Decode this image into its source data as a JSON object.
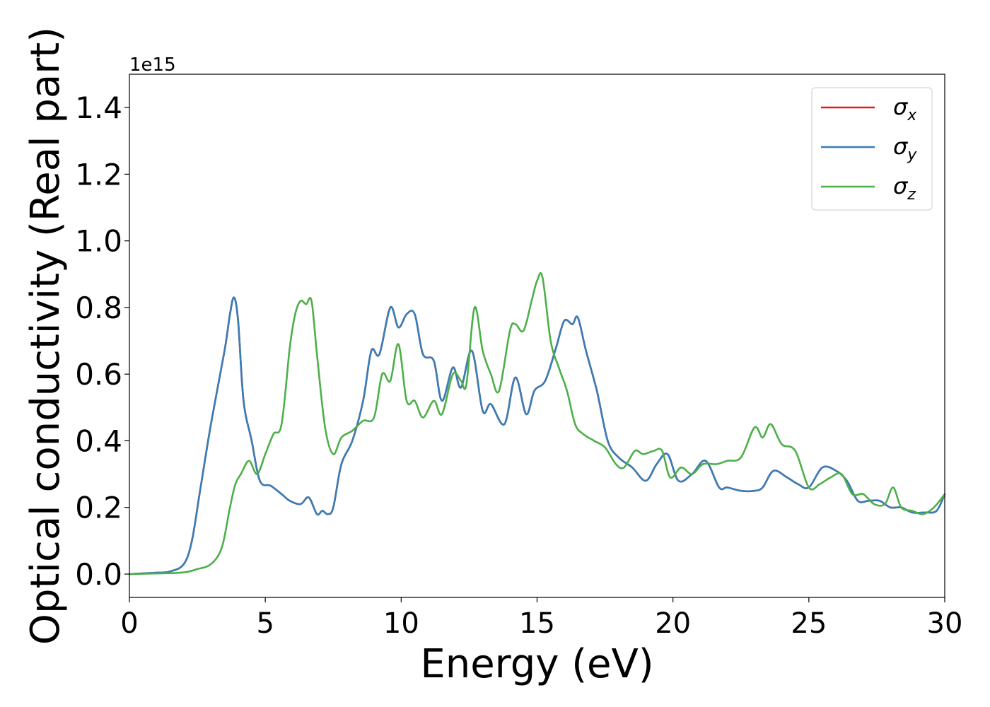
{
  "chart_data": {
    "type": "line",
    "xlabel": "Energy (eV)",
    "ylabel": "Optical conductivity (Real part)",
    "y_offset_text": "1e15",
    "xlim": [
      0,
      30
    ],
    "ylim": [
      -0.07,
      1.5
    ],
    "grid": false,
    "legend_position": "top-right",
    "x_ticks": [
      0,
      5,
      10,
      15,
      20,
      25,
      30
    ],
    "x_tick_labels": [
      "0",
      "5",
      "10",
      "15",
      "20",
      "25",
      "30"
    ],
    "y_ticks": [
      0.0,
      0.2,
      0.4,
      0.6,
      0.8,
      1.0,
      1.2,
      1.4
    ],
    "y_tick_labels": [
      "0.0",
      "0.2",
      "0.4",
      "0.6",
      "0.8",
      "1.0",
      "1.2",
      "1.4"
    ],
    "series": [
      {
        "name": "σx",
        "symbol": "σ",
        "subscript": "x",
        "color": "#e41a1c",
        "x": [
          0,
          1,
          1.5,
          2,
          2.3,
          2.6,
          3.0,
          3.5,
          3.7,
          3.85,
          4.0,
          4.2,
          4.5,
          4.8,
          5.2,
          5.6,
          5.9,
          6.3,
          6.6,
          6.9,
          7.1,
          7.3,
          7.5,
          7.8,
          8.2,
          8.6,
          8.9,
          9.2,
          9.6,
          9.9,
          10.2,
          10.5,
          10.8,
          11.2,
          11.5,
          11.9,
          12.2,
          12.6,
          13.0,
          13.3,
          13.8,
          14.2,
          14.6,
          14.9,
          15.3,
          15.7,
          16.0,
          16.3,
          16.5,
          16.8,
          17.2,
          17.6,
          18.0,
          18.5,
          19.0,
          19.4,
          19.8,
          20.2,
          20.7,
          21.2,
          21.7,
          22.0,
          22.5,
          23.0,
          23.3,
          23.7,
          24.2,
          24.6,
          25.0,
          25.5,
          26.0,
          26.4,
          26.8,
          27.2,
          27.6,
          28.0,
          28.4,
          28.8,
          29.3,
          29.7,
          30.0
        ],
        "y": [
          0,
          0.004,
          0.008,
          0.03,
          0.1,
          0.25,
          0.45,
          0.67,
          0.78,
          0.83,
          0.76,
          0.52,
          0.4,
          0.28,
          0.265,
          0.24,
          0.22,
          0.21,
          0.23,
          0.18,
          0.19,
          0.18,
          0.2,
          0.33,
          0.4,
          0.52,
          0.67,
          0.66,
          0.8,
          0.74,
          0.78,
          0.78,
          0.66,
          0.64,
          0.52,
          0.62,
          0.56,
          0.67,
          0.49,
          0.51,
          0.45,
          0.59,
          0.48,
          0.55,
          0.58,
          0.68,
          0.76,
          0.75,
          0.77,
          0.67,
          0.55,
          0.4,
          0.35,
          0.32,
          0.28,
          0.33,
          0.36,
          0.28,
          0.3,
          0.34,
          0.26,
          0.26,
          0.25,
          0.25,
          0.26,
          0.31,
          0.29,
          0.27,
          0.26,
          0.32,
          0.31,
          0.28,
          0.22,
          0.22,
          0.22,
          0.2,
          0.2,
          0.185,
          0.185,
          0.19,
          0.24
        ]
      },
      {
        "name": "σy",
        "symbol": "σ",
        "subscript": "y",
        "color": "#377eb8",
        "x": [
          0,
          1,
          1.5,
          2,
          2.3,
          2.6,
          3.0,
          3.5,
          3.7,
          3.85,
          4.0,
          4.2,
          4.5,
          4.8,
          5.2,
          5.6,
          5.9,
          6.3,
          6.6,
          6.9,
          7.1,
          7.3,
          7.5,
          7.8,
          8.2,
          8.6,
          8.9,
          9.2,
          9.6,
          9.9,
          10.2,
          10.5,
          10.8,
          11.2,
          11.5,
          11.9,
          12.2,
          12.6,
          13.0,
          13.3,
          13.8,
          14.2,
          14.6,
          14.9,
          15.3,
          15.7,
          16.0,
          16.3,
          16.5,
          16.8,
          17.2,
          17.6,
          18.0,
          18.5,
          19.0,
          19.4,
          19.8,
          20.2,
          20.7,
          21.2,
          21.7,
          22.0,
          22.5,
          23.0,
          23.3,
          23.7,
          24.2,
          24.6,
          25.0,
          25.5,
          26.0,
          26.4,
          26.8,
          27.2,
          27.6,
          28.0,
          28.4,
          28.8,
          29.3,
          29.7,
          30.0
        ],
        "y": [
          0,
          0.004,
          0.008,
          0.03,
          0.1,
          0.25,
          0.45,
          0.67,
          0.78,
          0.83,
          0.76,
          0.52,
          0.4,
          0.28,
          0.265,
          0.24,
          0.22,
          0.21,
          0.23,
          0.18,
          0.19,
          0.18,
          0.2,
          0.33,
          0.4,
          0.52,
          0.67,
          0.66,
          0.8,
          0.74,
          0.78,
          0.78,
          0.66,
          0.64,
          0.52,
          0.62,
          0.56,
          0.67,
          0.49,
          0.51,
          0.45,
          0.59,
          0.48,
          0.55,
          0.58,
          0.68,
          0.76,
          0.75,
          0.77,
          0.67,
          0.55,
          0.4,
          0.35,
          0.32,
          0.28,
          0.33,
          0.36,
          0.28,
          0.3,
          0.34,
          0.26,
          0.26,
          0.25,
          0.25,
          0.26,
          0.31,
          0.29,
          0.27,
          0.26,
          0.32,
          0.31,
          0.28,
          0.22,
          0.22,
          0.22,
          0.2,
          0.2,
          0.185,
          0.185,
          0.19,
          0.24
        ]
      },
      {
        "name": "σz",
        "symbol": "σ",
        "subscript": "z",
        "color": "#4daf4a",
        "x": [
          0,
          1,
          2,
          2.5,
          3.0,
          3.4,
          3.7,
          3.9,
          4.1,
          4.4,
          4.7,
          5.0,
          5.3,
          5.6,
          5.9,
          6.1,
          6.3,
          6.5,
          6.7,
          6.9,
          7.2,
          7.5,
          7.8,
          8.2,
          8.6,
          9.0,
          9.3,
          9.6,
          9.9,
          10.2,
          10.5,
          10.8,
          11.2,
          11.5,
          11.9,
          12.2,
          12.4,
          12.7,
          13.0,
          13.3,
          13.6,
          14.0,
          14.2,
          14.5,
          14.8,
          15.0,
          15.2,
          15.5,
          15.8,
          16.1,
          16.4,
          16.7,
          17.1,
          17.5,
          17.9,
          18.2,
          18.6,
          18.9,
          19.3,
          19.6,
          19.9,
          20.3,
          20.7,
          21.1,
          21.6,
          22.0,
          22.5,
          23.0,
          23.3,
          23.6,
          24.0,
          24.5,
          25.0,
          25.4,
          25.8,
          26.2,
          26.6,
          27.0,
          27.4,
          27.8,
          28.1,
          28.4,
          28.8,
          29.2,
          29.6,
          30.0
        ],
        "y": [
          0,
          0.002,
          0.005,
          0.015,
          0.03,
          0.08,
          0.2,
          0.27,
          0.3,
          0.34,
          0.3,
          0.36,
          0.42,
          0.45,
          0.68,
          0.78,
          0.82,
          0.81,
          0.82,
          0.66,
          0.44,
          0.36,
          0.41,
          0.43,
          0.46,
          0.47,
          0.6,
          0.58,
          0.69,
          0.52,
          0.52,
          0.47,
          0.52,
          0.48,
          0.6,
          0.58,
          0.57,
          0.8,
          0.67,
          0.6,
          0.55,
          0.73,
          0.75,
          0.73,
          0.82,
          0.88,
          0.89,
          0.7,
          0.62,
          0.55,
          0.45,
          0.42,
          0.4,
          0.38,
          0.33,
          0.32,
          0.37,
          0.36,
          0.37,
          0.37,
          0.29,
          0.32,
          0.3,
          0.33,
          0.33,
          0.34,
          0.35,
          0.44,
          0.41,
          0.45,
          0.39,
          0.37,
          0.26,
          0.27,
          0.29,
          0.3,
          0.24,
          0.24,
          0.21,
          0.21,
          0.26,
          0.2,
          0.19,
          0.18,
          0.2,
          0.24
        ]
      }
    ]
  }
}
